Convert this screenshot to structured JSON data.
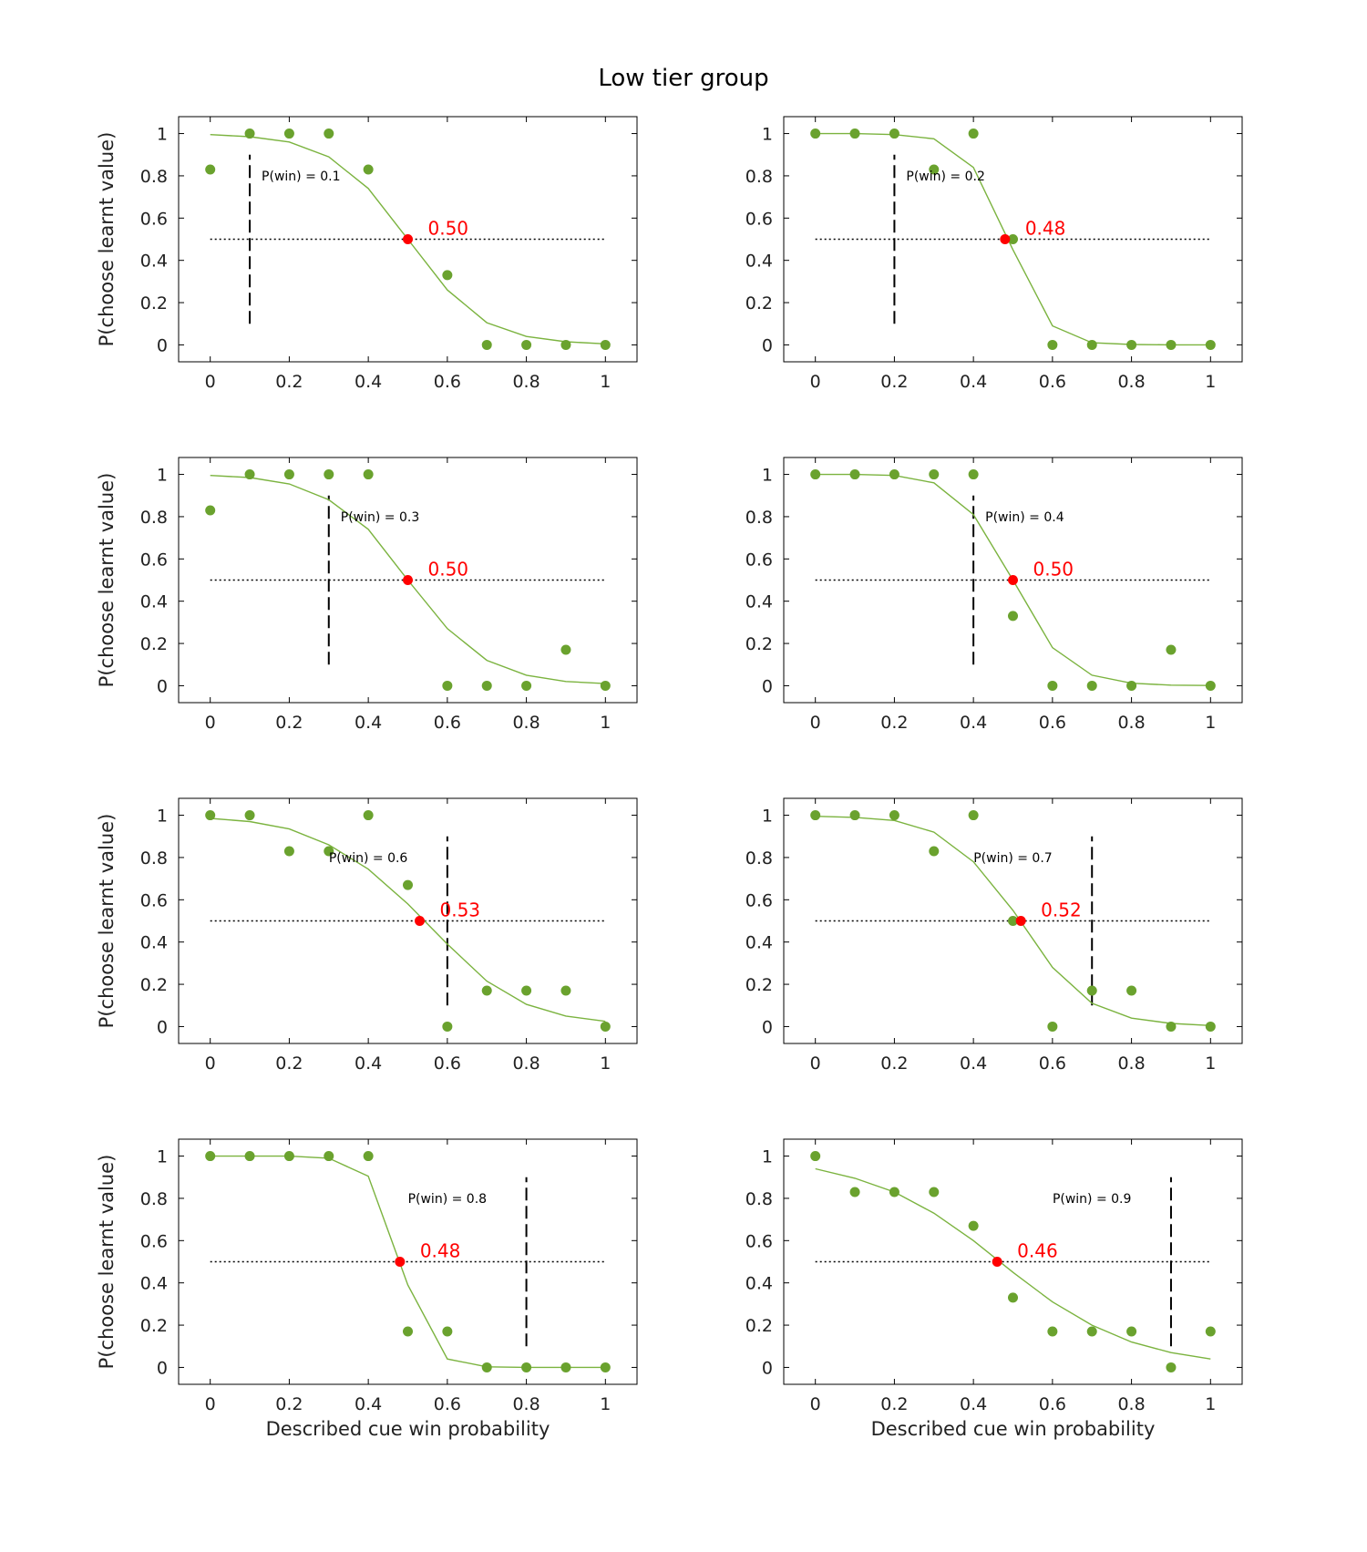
{
  "figure": {
    "title": "Low tier group",
    "ylabel": "P(choose learnt value)",
    "xlabel": "Described cue win probability",
    "ticks": [
      "0",
      "0.2",
      "0.4",
      "0.6",
      "0.8",
      "1"
    ],
    "colors": {
      "points": "#6aa22e",
      "fit": "#7bb33f",
      "indifference": "#ff0000",
      "lines": "#000000",
      "label": "#ff0000"
    }
  },
  "chart_data": [
    {
      "type": "scatter",
      "pwin_label": "P(win) = 0.1",
      "pwin": 0.1,
      "indiff_label": "0.50",
      "indiff": 0.5,
      "x": [
        0,
        0.1,
        0.2,
        0.3,
        0.4,
        0.5,
        0.6,
        0.7,
        0.8,
        0.9,
        1
      ],
      "points": [
        0.83,
        1,
        1,
        1,
        0.83,
        null,
        0.33,
        0,
        0,
        0,
        0
      ],
      "fit": [
        0.995,
        0.985,
        0.96,
        0.89,
        0.74,
        0.5,
        0.26,
        0.105,
        0.04,
        0.015,
        0.005
      ],
      "xlim": [
        -0.08,
        1.08
      ],
      "ylim": [
        -0.08,
        1.08
      ]
    },
    {
      "type": "scatter",
      "pwin_label": "P(win) = 0.2",
      "pwin": 0.2,
      "indiff_label": "0.48",
      "indiff": 0.48,
      "x": [
        0,
        0.1,
        0.2,
        0.3,
        0.4,
        0.5,
        0.6,
        0.7,
        0.8,
        0.9,
        1
      ],
      "points": [
        1,
        1,
        1,
        0.83,
        1,
        0.5,
        0,
        0,
        0,
        0,
        0
      ],
      "fit": [
        1,
        1,
        0.995,
        0.975,
        0.84,
        0.45,
        0.09,
        0.01,
        0.002,
        0,
        0
      ],
      "xlim": [
        -0.08,
        1.08
      ],
      "ylim": [
        -0.08,
        1.08
      ]
    },
    {
      "type": "scatter",
      "pwin_label": "P(win) = 0.3",
      "pwin": 0.3,
      "indiff_label": "0.50",
      "indiff": 0.5,
      "x": [
        0,
        0.1,
        0.2,
        0.3,
        0.4,
        0.5,
        0.6,
        0.7,
        0.8,
        0.9,
        1
      ],
      "points": [
        0.83,
        1,
        1,
        1,
        1,
        null,
        0,
        0,
        0,
        0.17,
        0
      ],
      "fit": [
        0.995,
        0.985,
        0.955,
        0.88,
        0.74,
        0.5,
        0.27,
        0.12,
        0.05,
        0.02,
        0.01
      ],
      "xlim": [
        -0.08,
        1.08
      ],
      "ylim": [
        -0.08,
        1.08
      ]
    },
    {
      "type": "scatter",
      "pwin_label": "P(win) = 0.4",
      "pwin": 0.4,
      "indiff_label": "0.50",
      "indiff": 0.5,
      "x": [
        0,
        0.1,
        0.2,
        0.3,
        0.4,
        0.5,
        0.6,
        0.7,
        0.8,
        0.9,
        1
      ],
      "points": [
        1,
        1,
        1,
        1,
        1,
        0.33,
        0,
        0,
        0,
        0.17,
        0
      ],
      "fit": [
        1,
        1,
        0.995,
        0.96,
        0.81,
        0.5,
        0.18,
        0.05,
        0.012,
        0.003,
        0.001
      ],
      "xlim": [
        -0.08,
        1.08
      ],
      "ylim": [
        -0.08,
        1.08
      ]
    },
    {
      "type": "scatter",
      "pwin_label": "P(win) = 0.6",
      "pwin": 0.6,
      "indiff_label": "0.53",
      "indiff": 0.53,
      "x": [
        0,
        0.1,
        0.2,
        0.3,
        0.4,
        0.5,
        0.6,
        0.7,
        0.8,
        0.9,
        1
      ],
      "points": [
        1,
        1,
        0.83,
        0.83,
        1,
        0.67,
        0,
        0.17,
        0.17,
        0.17,
        0
      ],
      "fit": [
        0.985,
        0.97,
        0.935,
        0.86,
        0.745,
        0.58,
        0.39,
        0.215,
        0.105,
        0.05,
        0.025
      ],
      "xlim": [
        -0.08,
        1.08
      ],
      "ylim": [
        -0.08,
        1.08
      ]
    },
    {
      "type": "scatter",
      "pwin_label": "P(win) = 0.7",
      "pwin": 0.7,
      "indiff_label": "0.52",
      "indiff": 0.52,
      "x": [
        0,
        0.1,
        0.2,
        0.3,
        0.4,
        0.5,
        0.6,
        0.7,
        0.8,
        0.9,
        1
      ],
      "points": [
        1,
        1,
        1,
        0.83,
        1,
        0.5,
        0,
        0.17,
        0.17,
        0,
        0
      ],
      "fit": [
        0.995,
        0.99,
        0.975,
        0.92,
        0.78,
        0.55,
        0.28,
        0.11,
        0.04,
        0.015,
        0.005
      ],
      "xlim": [
        -0.08,
        1.08
      ],
      "ylim": [
        -0.08,
        1.08
      ]
    },
    {
      "type": "scatter",
      "pwin_label": "P(win) = 0.8",
      "pwin": 0.8,
      "indiff_label": "0.48",
      "indiff": 0.48,
      "x": [
        0,
        0.1,
        0.2,
        0.3,
        0.4,
        0.5,
        0.6,
        0.7,
        0.8,
        0.9,
        1
      ],
      "points": [
        1,
        1,
        1,
        1,
        1,
        0.17,
        0.17,
        0,
        0,
        0,
        0
      ],
      "fit": [
        1,
        1,
        1,
        0.99,
        0.905,
        0.39,
        0.04,
        0.003,
        0,
        0,
        0
      ],
      "xlim": [
        -0.08,
        1.08
      ],
      "ylim": [
        -0.08,
        1.08
      ]
    },
    {
      "type": "scatter",
      "pwin_label": "P(win) = 0.9",
      "pwin": 0.9,
      "indiff_label": "0.46",
      "indiff": 0.46,
      "x": [
        0,
        0.1,
        0.2,
        0.3,
        0.4,
        0.5,
        0.6,
        0.7,
        0.8,
        0.9,
        1
      ],
      "points": [
        1,
        0.83,
        0.83,
        0.83,
        0.67,
        0.33,
        0.17,
        0.17,
        0.17,
        0,
        0.17
      ],
      "fit": [
        0.94,
        0.895,
        0.83,
        0.73,
        0.6,
        0.45,
        0.31,
        0.2,
        0.12,
        0.07,
        0.04
      ],
      "xlim": [
        -0.08,
        1.08
      ],
      "ylim": [
        -0.08,
        1.08
      ]
    }
  ]
}
